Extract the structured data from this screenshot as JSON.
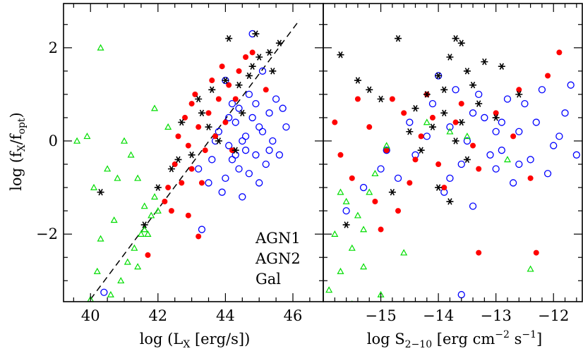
{
  "chart_data": [
    {
      "type": "scatter",
      "xlabel": "log (L",
      "xlabel_sub": "X",
      "xlabel_tail": " [erg/s])",
      "ylabel": "log (f",
      "ylabel_sub1": "X",
      "ylabel_mid": "/f",
      "ylabel_sub2": "opt",
      "ylabel_tail": ")",
      "xlim": [
        39.2,
        46.9
      ],
      "ylim": [
        -3.45,
        2.95
      ],
      "xticks": [
        40,
        42,
        44,
        46
      ],
      "xtick_labels": [
        "40",
        "42",
        "44",
        "46"
      ],
      "yticks": [
        -2,
        0,
        2
      ],
      "ytick_labels": [
        "−2",
        "0",
        "2"
      ],
      "reference_line": {
        "style": "dashed",
        "x": [
          40.0,
          46.2
        ],
        "y": [
          -3.4,
          2.6
        ]
      },
      "legend": {
        "placement": "bottom-right",
        "entries": [
          "AGN1",
          "AGN2",
          "Gal"
        ]
      },
      "series": [
        {
          "name": "AGN1",
          "color": "#0000ff",
          "marker": "open-circle",
          "points": [
            [
              43.8,
              0.2
            ],
            [
              44.1,
              -0.1
            ],
            [
              44.3,
              0.4
            ],
            [
              44.6,
              0.1
            ],
            [
              44.9,
              -0.3
            ],
            [
              45.1,
              0.2
            ],
            [
              44.4,
              -0.6
            ],
            [
              44.0,
              -0.8
            ],
            [
              43.6,
              -0.4
            ],
            [
              45.3,
              0.6
            ],
            [
              45.5,
              0.9
            ],
            [
              44.7,
              1.0
            ],
            [
              44.2,
              0.8
            ],
            [
              45.8,
              0.3
            ],
            [
              45.0,
              -0.9
            ],
            [
              44.5,
              -1.2
            ],
            [
              43.9,
              -1.1
            ],
            [
              44.8,
              0.5
            ],
            [
              45.2,
              -0.5
            ],
            [
              44.1,
              0.5
            ],
            [
              43.7,
              0.0
            ],
            [
              44.6,
              -0.2
            ],
            [
              45.4,
              0.0
            ],
            [
              45.6,
              -0.3
            ],
            [
              44.9,
              0.8
            ],
            [
              44.3,
              -0.3
            ],
            [
              43.5,
              -0.9
            ],
            [
              44.0,
              1.3
            ],
            [
              45.1,
              1.5
            ],
            [
              44.8,
              2.3
            ],
            [
              43.3,
              -1.9
            ],
            [
              40.4,
              -3.25
            ],
            [
              44.5,
              0.0
            ],
            [
              44.2,
              -0.4
            ],
            [
              45.0,
              0.3
            ],
            [
              45.7,
              0.7
            ],
            [
              43.2,
              -0.6
            ],
            [
              44.7,
              -0.7
            ],
            [
              45.3,
              -0.2
            ],
            [
              44.4,
              0.7
            ]
          ]
        },
        {
          "name": "AGN2",
          "color": "#ff0000",
          "marker": "filled-circle",
          "points": [
            [
              42.5,
              -0.5
            ],
            [
              42.9,
              -0.1
            ],
            [
              43.2,
              0.3
            ],
            [
              43.5,
              0.6
            ],
            [
              43.8,
              0.9
            ],
            [
              44.1,
              1.2
            ],
            [
              44.4,
              1.5
            ],
            [
              43.0,
              -0.6
            ],
            [
              42.7,
              -0.9
            ],
            [
              43.4,
              -0.2
            ],
            [
              43.7,
              0.1
            ],
            [
              44.0,
              0.4
            ],
            [
              42.3,
              -1.0
            ],
            [
              42.2,
              -1.3
            ],
            [
              43.1,
              1.0
            ],
            [
              43.9,
              1.6
            ],
            [
              44.6,
              1.8
            ],
            [
              42.8,
              0.5
            ],
            [
              43.3,
              -0.9
            ],
            [
              42.6,
              0.1
            ],
            [
              43.6,
              1.3
            ],
            [
              44.3,
              0.9
            ],
            [
              42.4,
              -1.5
            ],
            [
              43.2,
              -2.05
            ],
            [
              41.7,
              -2.45
            ],
            [
              44.8,
              1.9
            ],
            [
              45.2,
              1.1
            ],
            [
              43.0,
              0.8
            ],
            [
              42.9,
              -1.6
            ],
            [
              44.2,
              -0.2
            ]
          ]
        },
        {
          "name": "Gal",
          "color": "#00dd00",
          "marker": "open-triangle",
          "points": [
            [
              39.6,
              0.0
            ],
            [
              39.9,
              0.1
            ],
            [
              40.3,
              2.0
            ],
            [
              40.5,
              -0.6
            ],
            [
              40.8,
              -0.8
            ],
            [
              41.0,
              0.0
            ],
            [
              41.2,
              -0.3
            ],
            [
              41.4,
              -0.8
            ],
            [
              41.6,
              -1.4
            ],
            [
              41.8,
              -1.6
            ],
            [
              41.9,
              -1.2
            ],
            [
              41.5,
              -2.0
            ],
            [
              41.3,
              -2.3
            ],
            [
              41.1,
              -2.6
            ],
            [
              40.9,
              -3.0
            ],
            [
              40.6,
              -3.3
            ],
            [
              40.2,
              -2.8
            ],
            [
              40.3,
              -2.1
            ],
            [
              40.7,
              -1.7
            ],
            [
              41.7,
              -2.0
            ],
            [
              42.0,
              -1.5
            ],
            [
              41.6,
              -1.9
            ],
            [
              40.1,
              -1.0
            ],
            [
              41.9,
              0.7
            ],
            [
              42.3,
              0.3
            ],
            [
              41.4,
              -2.7
            ],
            [
              40.0,
              -3.4
            ],
            [
              40.5,
              -3.5
            ]
          ]
        },
        {
          "name": "",
          "color": "#000000",
          "marker": "asterisk",
          "points": [
            [
              40.3,
              -1.1
            ],
            [
              41.6,
              -1.8
            ],
            [
              42.0,
              -1.0
            ],
            [
              42.4,
              -0.6
            ],
            [
              42.7,
              0.4
            ],
            [
              43.2,
              0.9
            ],
            [
              43.6,
              1.1
            ],
            [
              44.0,
              1.3
            ],
            [
              44.4,
              1.2
            ],
            [
              44.8,
              1.6
            ],
            [
              45.0,
              1.8
            ],
            [
              45.3,
              1.9
            ],
            [
              45.6,
              2.1
            ],
            [
              44.1,
              2.2
            ],
            [
              44.5,
              0.6
            ],
            [
              43.8,
              0.0
            ],
            [
              43.0,
              -0.3
            ],
            [
              42.6,
              -0.4
            ],
            [
              44.9,
              2.3
            ],
            [
              45.4,
              1.5
            ],
            [
              44.3,
              -0.2
            ],
            [
              43.5,
              0.3
            ],
            [
              43.3,
              0.6
            ],
            [
              44.7,
              1.4
            ]
          ]
        }
      ]
    },
    {
      "type": "scatter",
      "xlabel": "log S",
      "xlabel_sub": "2−10",
      "xlabel_tail": " [erg cm",
      "xlabel_sup1": "−2",
      "xlabel_tail2": " s",
      "xlabel_sup2": "−1",
      "xlabel_tail3": "]",
      "xlim": [
        -16.0,
        -11.5
      ],
      "ylim": [
        -3.45,
        2.95
      ],
      "xticks": [
        -15,
        -14,
        -13,
        -12
      ],
      "xtick_labels": [
        "−15",
        "−14",
        "−13",
        "−12"
      ],
      "yticks": [
        -2,
        0,
        2
      ],
      "series": [
        {
          "name": "AGN1",
          "color": "#0000ff",
          "marker": "open-circle",
          "points": [
            [
              -13.8,
              0.3
            ],
            [
              -13.5,
              0.0
            ],
            [
              -13.2,
              0.5
            ],
            [
              -12.9,
              -0.2
            ],
            [
              -12.6,
              0.2
            ],
            [
              -12.3,
              0.4
            ],
            [
              -12.0,
              -0.1
            ],
            [
              -11.8,
              0.6
            ],
            [
              -13.6,
              -0.5
            ],
            [
              -13.0,
              -0.6
            ],
            [
              -12.7,
              -0.9
            ],
            [
              -14.1,
              0.8
            ],
            [
              -14.4,
              -0.3
            ],
            [
              -14.7,
              -0.8
            ],
            [
              -15.0,
              -0.6
            ],
            [
              -15.3,
              -1.0
            ],
            [
              -15.6,
              -1.5
            ],
            [
              -13.3,
              1.0
            ],
            [
              -12.5,
              0.8
            ],
            [
              -12.2,
              1.1
            ],
            [
              -11.7,
              1.2
            ],
            [
              -13.9,
              -1.1
            ],
            [
              -13.4,
              -1.4
            ],
            [
              -12.8,
              0.9
            ],
            [
              -14.2,
              0.1
            ],
            [
              -13.7,
              1.1
            ],
            [
              -12.4,
              -0.4
            ],
            [
              -11.9,
              0.1
            ],
            [
              -14.9,
              -0.2
            ],
            [
              -13.1,
              -0.3
            ],
            [
              -13.6,
              -3.3
            ],
            [
              -12.1,
              -0.7
            ],
            [
              -14.5,
              0.4
            ],
            [
              -13.0,
              0.2
            ],
            [
              -12.6,
              -0.5
            ],
            [
              -11.6,
              -0.3
            ],
            [
              -13.8,
              -0.8
            ],
            [
              -14.0,
              1.4
            ],
            [
              -13.4,
              0.6
            ],
            [
              -12.9,
              0.4
            ]
          ]
        },
        {
          "name": "AGN2",
          "color": "#ff0000",
          "marker": "filled-circle",
          "points": [
            [
              -15.2,
              0.3
            ],
            [
              -14.9,
              -0.2
            ],
            [
              -14.6,
              0.6
            ],
            [
              -14.3,
              0.1
            ],
            [
              -14.0,
              -0.5
            ],
            [
              -13.7,
              0.4
            ],
            [
              -13.4,
              -0.1
            ],
            [
              -15.5,
              -0.8
            ],
            [
              -15.8,
              0.4
            ],
            [
              -15.1,
              -1.3
            ],
            [
              -14.8,
              0.9
            ],
            [
              -14.5,
              -0.9
            ],
            [
              -14.2,
              1.0
            ],
            [
              -13.9,
              -1.0
            ],
            [
              -13.6,
              0.8
            ],
            [
              -13.3,
              -0.6
            ],
            [
              -13.0,
              0.6
            ],
            [
              -12.7,
              0.1
            ],
            [
              -12.4,
              -0.8
            ],
            [
              -12.1,
              1.4
            ],
            [
              -11.9,
              1.9
            ],
            [
              -12.3,
              -2.4
            ],
            [
              -13.3,
              -2.4
            ],
            [
              -15.0,
              -1.9
            ],
            [
              -15.7,
              -0.3
            ],
            [
              -14.4,
              -0.4
            ],
            [
              -14.1,
              0.5
            ],
            [
              -12.6,
              1.1
            ],
            [
              -15.4,
              0.9
            ],
            [
              -14.7,
              -1.5
            ]
          ]
        },
        {
          "name": "Gal",
          "color": "#00dd00",
          "marker": "open-triangle",
          "points": [
            [
              -15.9,
              -3.2
            ],
            [
              -15.7,
              -2.8
            ],
            [
              -15.5,
              -2.3
            ],
            [
              -15.3,
              -1.9
            ],
            [
              -15.6,
              -1.3
            ],
            [
              -15.4,
              -1.6
            ],
            [
              -15.2,
              -1.1
            ],
            [
              -15.8,
              -2.0
            ],
            [
              -15.1,
              -0.7
            ],
            [
              -15.0,
              -3.3
            ],
            [
              -15.3,
              -2.7
            ],
            [
              -14.6,
              -2.4
            ],
            [
              -14.2,
              0.4
            ],
            [
              -13.8,
              0.2
            ],
            [
              -13.5,
              0.1
            ],
            [
              -12.8,
              -0.4
            ],
            [
              -12.4,
              -2.75
            ],
            [
              -15.5,
              -3.5
            ],
            [
              -14.9,
              -0.1
            ],
            [
              -15.7,
              -1.1
            ]
          ]
        },
        {
          "name": "",
          "color": "#000000",
          "marker": "asterisk",
          "points": [
            [
              -15.7,
              1.85
            ],
            [
              -15.4,
              1.3
            ],
            [
              -15.2,
              1.1
            ],
            [
              -15.0,
              0.9
            ],
            [
              -14.7,
              2.2
            ],
            [
              -14.4,
              0.7
            ],
            [
              -14.2,
              1.0
            ],
            [
              -14.0,
              1.4
            ],
            [
              -13.8,
              1.8
            ],
            [
              -13.7,
              2.2
            ],
            [
              -13.6,
              2.1
            ],
            [
              -13.5,
              1.5
            ],
            [
              -13.4,
              1.2
            ],
            [
              -13.3,
              0.8
            ],
            [
              -13.9,
              0.6
            ],
            [
              -14.1,
              0.3
            ],
            [
              -13.6,
              0.4
            ],
            [
              -13.2,
              1.7
            ],
            [
              -12.9,
              1.6
            ],
            [
              -12.6,
              1.0
            ],
            [
              -14.3,
              -0.2
            ],
            [
              -13.5,
              -0.4
            ],
            [
              -14.0,
              -1.0
            ],
            [
              -13.8,
              -1.3
            ],
            [
              -14.8,
              -1.1
            ],
            [
              -15.6,
              -1.8
            ],
            [
              -13.7,
              0.0
            ],
            [
              -13.0,
              0.5
            ],
            [
              -14.5,
              0.2
            ],
            [
              -13.9,
              1.1
            ]
          ]
        }
      ]
    }
  ]
}
